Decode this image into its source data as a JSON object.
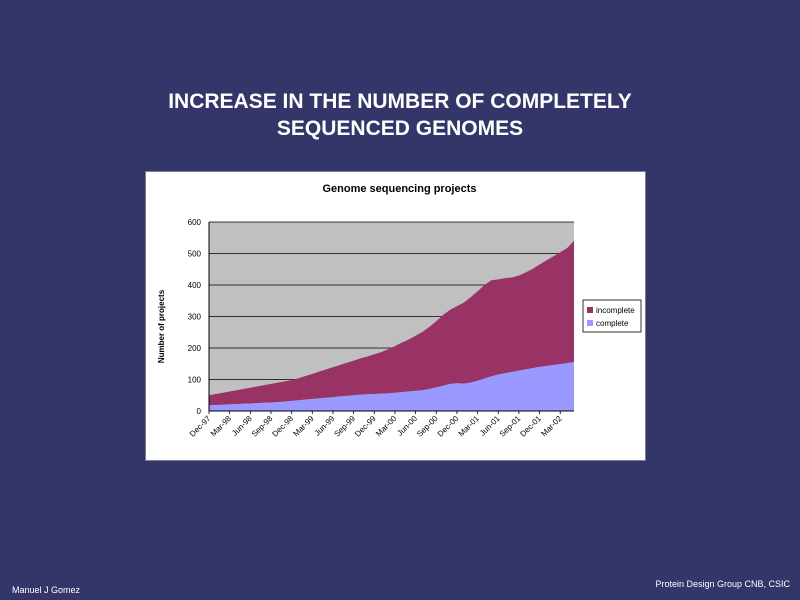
{
  "slide": {
    "title_line1": "INCREASE IN THE NUMBER OF COMPLETELY",
    "title_line2": "SEQUENCED GENOMES",
    "footer_left": "Manuel J Gomez",
    "footer_right": "Protein Design Group CNB, CSIC"
  },
  "colors": {
    "background": "#34366a",
    "plot_area": "#c0c0c0",
    "incomplete": "#993366",
    "complete": "#9999ff"
  },
  "chart_data": {
    "type": "area",
    "title": "Genome sequencing projects",
    "xlabel": "",
    "ylabel": "Number of projects",
    "ylim": [
      0,
      600
    ],
    "yticks": [
      0,
      100,
      200,
      300,
      400,
      500,
      600
    ],
    "grid": true,
    "legend": "right",
    "stacked": true,
    "x": [
      "Dec-97",
      "Jan-98",
      "Feb-98",
      "Mar-98",
      "Apr-98",
      "May-98",
      "Jun-98",
      "Jul-98",
      "Aug-98",
      "Sep-98",
      "Oct-98",
      "Nov-98",
      "Dec-98",
      "Jan-99",
      "Feb-99",
      "Mar-99",
      "Apr-99",
      "May-99",
      "Jun-99",
      "Jul-99",
      "Aug-99",
      "Sep-99",
      "Oct-99",
      "Nov-99",
      "Dec-99",
      "Jan-00",
      "Feb-00",
      "Mar-00",
      "Apr-00",
      "May-00",
      "Jun-00",
      "Jul-00",
      "Aug-00",
      "Sep-00",
      "Oct-00",
      "Nov-00",
      "Dec-00",
      "Jan-01",
      "Feb-01",
      "Mar-01",
      "Apr-01",
      "May-01",
      "Jun-01",
      "Jul-01",
      "Aug-01",
      "Sep-01",
      "Oct-01",
      "Nov-01",
      "Dec-01",
      "Jan-02",
      "Feb-02",
      "Mar-02",
      "Apr-02",
      "May-02"
    ],
    "x_tick_labels": [
      "Dec-97",
      "Mar-98",
      "Jun-98",
      "Sep-98",
      "Dec-98",
      "Mar-99",
      "Jun-99",
      "Sep-99",
      "Dec-99",
      "Mar-00",
      "Jun-00",
      "Sep-00",
      "Dec-00",
      "Mar-01",
      "Jun-01",
      "Sep-01",
      "Dec-01",
      "Mar-02"
    ],
    "series": [
      {
        "name": "complete",
        "values": [
          18,
          19,
          20,
          21,
          22,
          23,
          24,
          25,
          26,
          27,
          28,
          30,
          32,
          34,
          36,
          38,
          40,
          42,
          44,
          46,
          48,
          50,
          52,
          53,
          54,
          55,
          56,
          58,
          60,
          62,
          64,
          66,
          70,
          75,
          80,
          86,
          88,
          87,
          90,
          96,
          103,
          110,
          116,
          120,
          124,
          128,
          132,
          136,
          140,
          143,
          146,
          149,
          152,
          155
        ]
      },
      {
        "name": "incomplete",
        "values": [
          32,
          35,
          38,
          41,
          44,
          47,
          50,
          53,
          56,
          59,
          62,
          64,
          66,
          70,
          75,
          80,
          85,
          90,
          95,
          100,
          105,
          110,
          115,
          120,
          126,
          132,
          140,
          148,
          157,
          165,
          175,
          185,
          197,
          210,
          225,
          235,
          245,
          257,
          271,
          284,
          297,
          305,
          302,
          302,
          300,
          302,
          308,
          315,
          325,
          335,
          345,
          355,
          365,
          385
        ]
      }
    ]
  }
}
